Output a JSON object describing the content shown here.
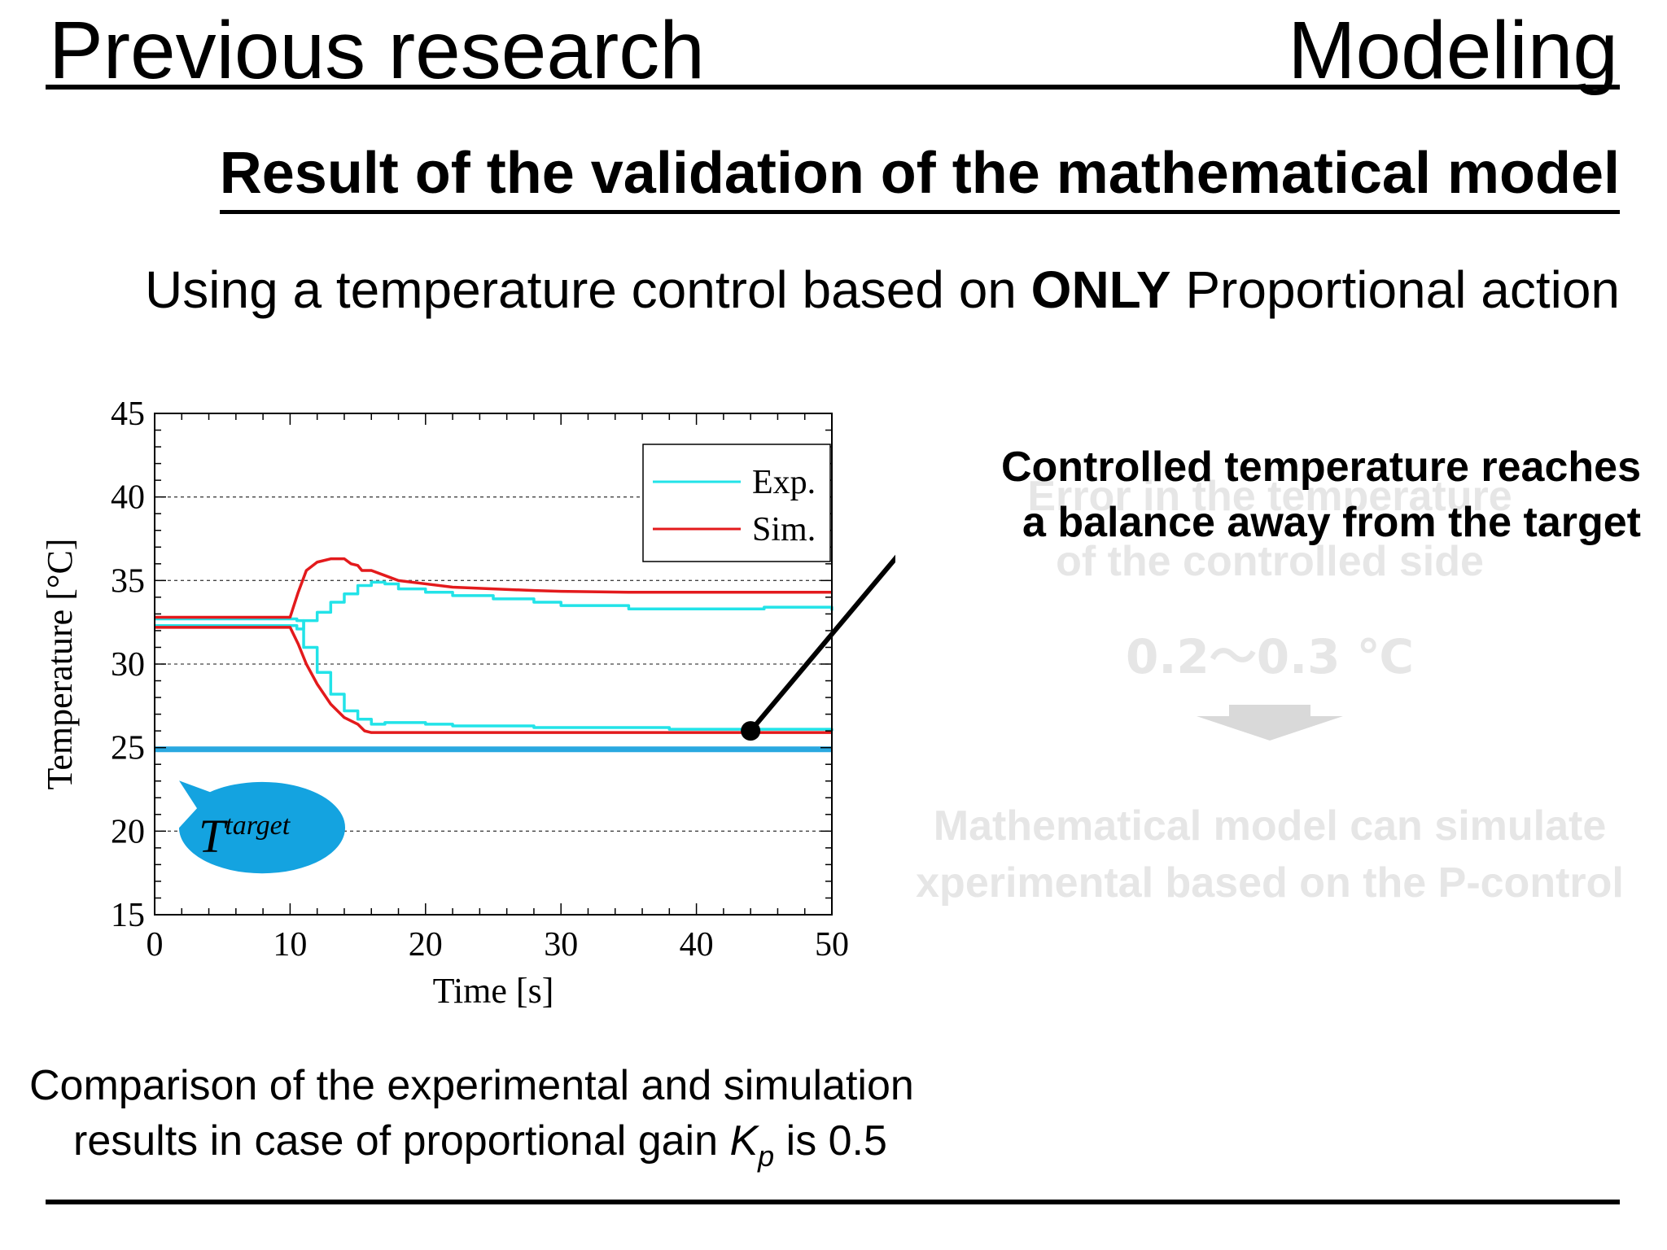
{
  "header": {
    "left_title": "Previous research",
    "right_title": "Modeling"
  },
  "subtitle": "Result of the validation of the mathematical model",
  "lead": {
    "before": "Using a temperature control based on ",
    "emphasis": "ONLY",
    "after": " Proportional action"
  },
  "callout": {
    "line1": "Controlled temperature reaches",
    "line2": "a balance away from the target"
  },
  "ghost": {
    "error_line1": "Error in the temperature",
    "error_line2": "of the controlled side",
    "range": "0.2〜0.3 ℃",
    "model_line1": "Mathematical model can simulate",
    "model_line2": "xperimental based on the P-control"
  },
  "caption": {
    "line1": "Comparison of the experimental and simulation",
    "line2_before": "results in case of proportional gain ",
    "kp_symbol": "K",
    "kp_subscript": "p",
    "line2_after": " is 0.5"
  },
  "colors": {
    "exp": "#22e3e8",
    "sim": "#e31a1c",
    "target_line": "#29a8e0",
    "target_bubble": "#14a3e0"
  },
  "chart_data": {
    "type": "line",
    "xlabel": "Time [s]",
    "ylabel": "Temperature [°C]",
    "xlim": [
      0,
      50
    ],
    "ylim": [
      15,
      45
    ],
    "xticks": [
      "0",
      "10",
      "20",
      "30",
      "40",
      "50"
    ],
    "yticks": [
      "15",
      "20",
      "25",
      "30",
      "35",
      "40",
      "45"
    ],
    "grid": "horizontal dotted",
    "legend": {
      "position": "top-right",
      "entries": [
        "Exp.",
        "Sim."
      ]
    },
    "target": {
      "label_base": "T",
      "label_sup": "target",
      "value": 24.9
    },
    "series": [
      {
        "name": "Exp.",
        "curves": [
          {
            "x": [
              0,
              10,
              10.5,
              11,
              12,
              13,
              14,
              15,
              16,
              17,
              18,
              20,
              22,
              25,
              28,
              30,
              33,
              35,
              38,
              40,
              45,
              50
            ],
            "y": [
              32.3,
              32.3,
              32.1,
              32.6,
              33.1,
              33.7,
              34.2,
              34.7,
              34.9,
              34.8,
              34.5,
              34.3,
              34.1,
              33.9,
              33.7,
              33.5,
              33.5,
              33.3,
              33.3,
              33.3,
              33.4,
              33.2
            ]
          },
          {
            "x": [
              0,
              10,
              10.5,
              11,
              12,
              13,
              14,
              15,
              16,
              17,
              18,
              20,
              22,
              25,
              28,
              30,
              33,
              35,
              38,
              40,
              45,
              50
            ],
            "y": [
              32.7,
              32.7,
              32.6,
              31.0,
              29.5,
              28.2,
              27.2,
              26.7,
              26.4,
              26.5,
              26.5,
              26.4,
              26.3,
              26.3,
              26.2,
              26.2,
              26.2,
              26.2,
              26.1,
              26.1,
              26.1,
              26.0
            ]
          }
        ]
      },
      {
        "name": "Sim.",
        "curves": [
          {
            "x": [
              0,
              10,
              10.6,
              11.2,
              12,
              13,
              14,
              14.5,
              15,
              15.3,
              16,
              17,
              18,
              20,
              22,
              25,
              28,
              30,
              35,
              40,
              45,
              50
            ],
            "y": [
              32.8,
              32.8,
              34.3,
              35.6,
              36.1,
              36.3,
              36.3,
              36.0,
              35.9,
              35.6,
              35.6,
              35.3,
              35.0,
              34.8,
              34.6,
              34.5,
              34.4,
              34.35,
              34.3,
              34.3,
              34.3,
              34.3
            ]
          },
          {
            "x": [
              0,
              10,
              10.6,
              11.2,
              12,
              13,
              14,
              15,
              15.5,
              16,
              17,
              20,
              25,
              30,
              40,
              50
            ],
            "y": [
              32.2,
              32.2,
              31.2,
              30.0,
              28.8,
              27.6,
              26.8,
              26.4,
              26.0,
              25.9,
              25.9,
              25.9,
              25.9,
              25.9,
              25.9,
              25.9
            ]
          }
        ]
      }
    ],
    "marker": {
      "x": 44,
      "y": 26.0
    }
  }
}
